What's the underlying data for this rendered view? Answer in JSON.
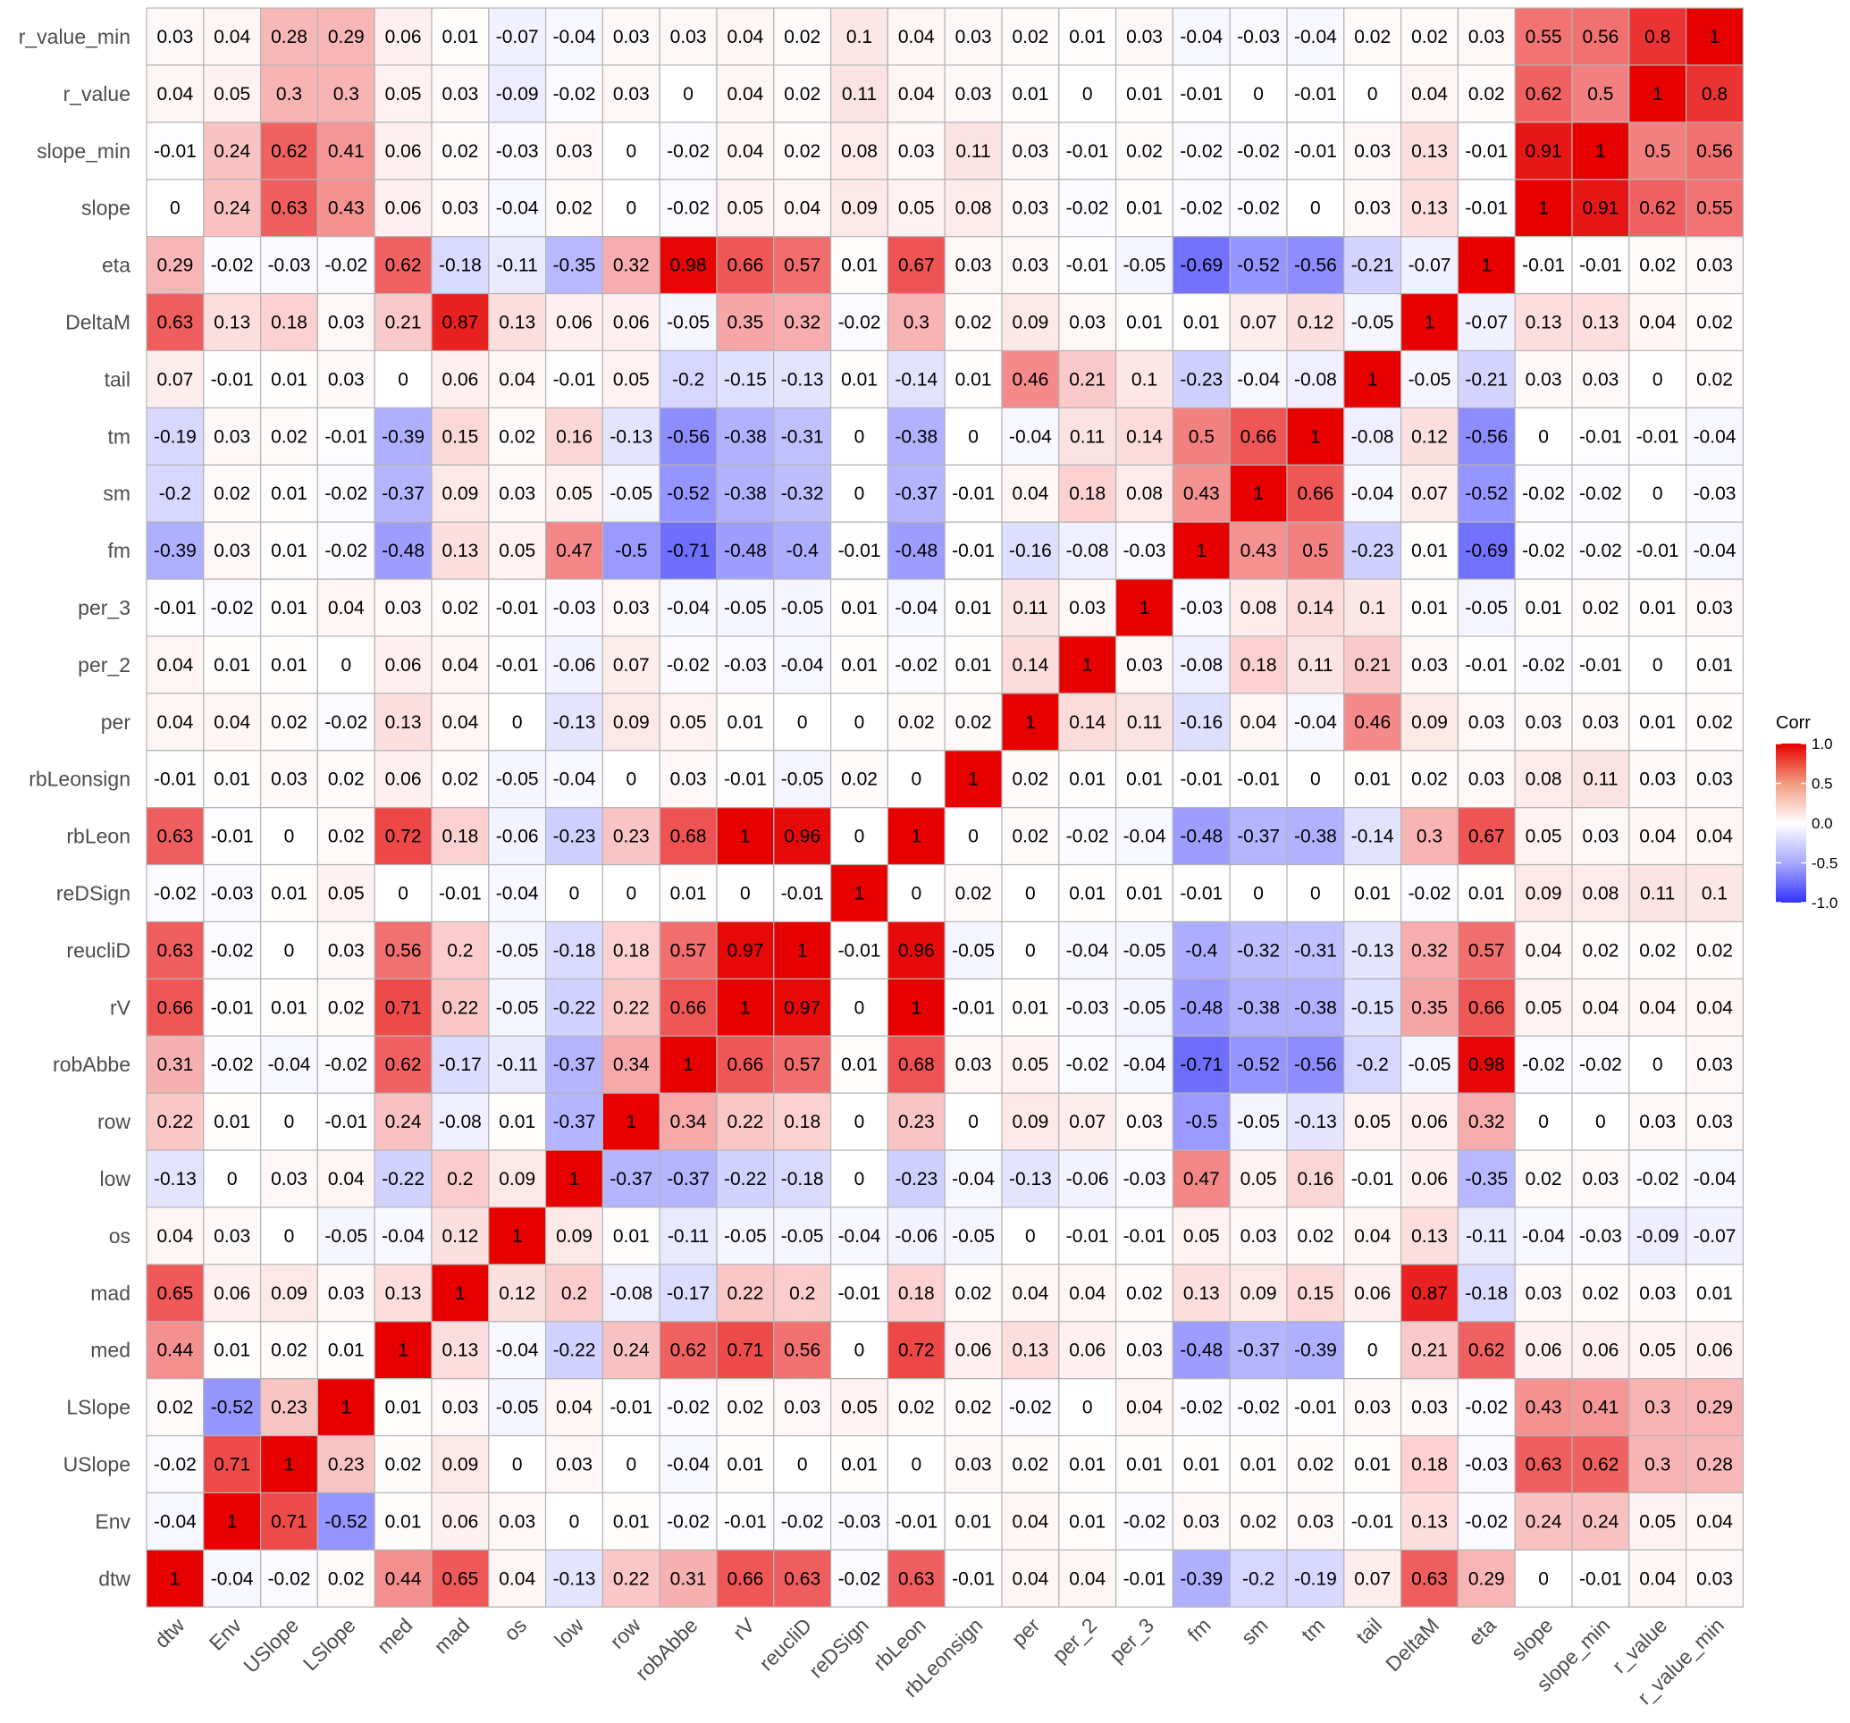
{
  "chart_data": {
    "type": "heatmap",
    "variables": [
      "dtw",
      "Env",
      "USlope",
      "LSlope",
      "med",
      "mad",
      "os",
      "low",
      "row",
      "robAbbe",
      "rV",
      "reucliD",
      "reDSign",
      "rbLeon",
      "rbLeonsign",
      "per",
      "per_2",
      "per_3",
      "fm",
      "sm",
      "tm",
      "tail",
      "DeltaM",
      "eta",
      "slope",
      "slope_min",
      "r_value",
      "r_value_min"
    ],
    "matrix": [
      [
        1,
        -0.04,
        -0.02,
        0.02,
        0.44,
        0.65,
        0.04,
        -0.13,
        0.22,
        0.31,
        0.66,
        0.63,
        -0.02,
        0.63,
        -0.01,
        0.04,
        0.04,
        -0.01,
        -0.39,
        -0.2,
        -0.19,
        0.07,
        0.63,
        0.29,
        0,
        -0.01,
        0.04,
        0.03
      ],
      [
        -0.04,
        1,
        0.71,
        -0.52,
        0.01,
        0.06,
        0.03,
        0,
        0.01,
        -0.02,
        -0.01,
        -0.02,
        -0.03,
        -0.01,
        0.01,
        0.04,
        0.01,
        -0.02,
        0.03,
        0.02,
        0.03,
        -0.01,
        0.13,
        -0.02,
        0.24,
        0.24,
        0.05,
        0.04
      ],
      [
        -0.02,
        0.71,
        1,
        0.23,
        0.02,
        0.09,
        0,
        0.03,
        0,
        -0.04,
        0.01,
        0,
        0.01,
        0,
        0.03,
        0.02,
        0.01,
        0.01,
        0.01,
        0.01,
        0.02,
        0.01,
        0.18,
        -0.03,
        0.63,
        0.62,
        0.3,
        0.28
      ],
      [
        0.02,
        -0.52,
        0.23,
        1,
        0.01,
        0.03,
        -0.05,
        0.04,
        -0.01,
        -0.02,
        0.02,
        0.03,
        0.05,
        0.02,
        0.02,
        -0.02,
        0,
        0.04,
        -0.02,
        -0.02,
        -0.01,
        0.03,
        0.03,
        -0.02,
        0.43,
        0.41,
        0.3,
        0.29
      ],
      [
        0.44,
        0.01,
        0.02,
        0.01,
        1,
        0.13,
        -0.04,
        -0.22,
        0.24,
        0.62,
        0.71,
        0.56,
        0,
        0.72,
        0.06,
        0.13,
        0.06,
        0.03,
        -0.48,
        -0.37,
        -0.39,
        0,
        0.21,
        0.62,
        0.06,
        0.06,
        0.05,
        0.06
      ],
      [
        0.65,
        0.06,
        0.09,
        0.03,
        0.13,
        1,
        0.12,
        0.2,
        -0.08,
        -0.17,
        0.22,
        0.2,
        -0.01,
        0.18,
        0.02,
        0.04,
        0.04,
        0.02,
        0.13,
        0.09,
        0.15,
        0.06,
        0.87,
        -0.18,
        0.03,
        0.02,
        0.03,
        0.01
      ],
      [
        0.04,
        0.03,
        0,
        -0.05,
        -0.04,
        0.12,
        1,
        0.09,
        0.01,
        -0.11,
        -0.05,
        -0.05,
        -0.04,
        -0.06,
        -0.05,
        0,
        -0.01,
        -0.01,
        0.05,
        0.03,
        0.02,
        0.04,
        0.13,
        -0.11,
        -0.04,
        -0.03,
        -0.09,
        -0.07
      ],
      [
        -0.13,
        0,
        0.03,
        0.04,
        -0.22,
        0.2,
        0.09,
        1,
        -0.37,
        -0.37,
        -0.22,
        -0.18,
        0,
        -0.23,
        -0.04,
        -0.13,
        -0.06,
        -0.03,
        0.47,
        0.05,
        0.16,
        -0.01,
        0.06,
        -0.35,
        0.02,
        0.03,
        -0.02,
        -0.04
      ],
      [
        0.22,
        0.01,
        0,
        -0.01,
        0.24,
        -0.08,
        0.01,
        -0.37,
        1,
        0.34,
        0.22,
        0.18,
        0,
        0.23,
        0,
        0.09,
        0.07,
        0.03,
        -0.5,
        -0.05,
        -0.13,
        0.05,
        0.06,
        0.32,
        0,
        0,
        0.03,
        0.03
      ],
      [
        0.31,
        -0.02,
        -0.04,
        -0.02,
        0.62,
        -0.17,
        -0.11,
        -0.37,
        0.34,
        1,
        0.66,
        0.57,
        0.01,
        0.68,
        0.03,
        0.05,
        -0.02,
        -0.04,
        -0.71,
        -0.52,
        -0.56,
        -0.2,
        -0.05,
        0.98,
        -0.02,
        -0.02,
        0,
        0.03
      ],
      [
        0.66,
        -0.01,
        0.01,
        0.02,
        0.71,
        0.22,
        -0.05,
        -0.22,
        0.22,
        0.66,
        1,
        0.97,
        0,
        1,
        -0.01,
        0.01,
        -0.03,
        -0.05,
        -0.48,
        -0.38,
        -0.38,
        -0.15,
        0.35,
        0.66,
        0.05,
        0.04,
        0.04,
        0.04
      ],
      [
        0.63,
        -0.02,
        0,
        0.03,
        0.56,
        0.2,
        -0.05,
        -0.18,
        0.18,
        0.57,
        0.97,
        1,
        -0.01,
        0.96,
        -0.05,
        0,
        -0.04,
        -0.05,
        -0.4,
        -0.32,
        -0.31,
        -0.13,
        0.32,
        0.57,
        0.04,
        0.02,
        0.02,
        0.02
      ],
      [
        -0.02,
        -0.03,
        0.01,
        0.05,
        0,
        -0.01,
        -0.04,
        0,
        0,
        0.01,
        0,
        -0.01,
        1,
        0,
        0.02,
        0,
        0.01,
        0.01,
        -0.01,
        0,
        0,
        0.01,
        -0.02,
        0.01,
        0.09,
        0.08,
        0.11,
        0.1
      ],
      [
        0.63,
        -0.01,
        0,
        0.02,
        0.72,
        0.18,
        -0.06,
        -0.23,
        0.23,
        0.68,
        1,
        0.96,
        0,
        1,
        0,
        0.02,
        -0.02,
        -0.04,
        -0.48,
        -0.37,
        -0.38,
        -0.14,
        0.3,
        0.67,
        0.05,
        0.03,
        0.04,
        0.04
      ],
      [
        -0.01,
        0.01,
        0.03,
        0.02,
        0.06,
        0.02,
        -0.05,
        -0.04,
        0,
        0.03,
        -0.01,
        -0.05,
        0.02,
        0,
        1,
        0.02,
        0.01,
        0.01,
        -0.01,
        -0.01,
        0,
        0.01,
        0.02,
        0.03,
        0.08,
        0.11,
        0.03,
        0.03
      ],
      [
        0.04,
        0.04,
        0.02,
        -0.02,
        0.13,
        0.04,
        0,
        -0.13,
        0.09,
        0.05,
        0.01,
        0,
        0,
        0.02,
        0.02,
        1,
        0.14,
        0.11,
        -0.16,
        0.04,
        -0.04,
        0.46,
        0.09,
        0.03,
        0.03,
        0.03,
        0.01,
        0.02
      ],
      [
        0.04,
        0.01,
        0.01,
        0,
        0.06,
        0.04,
        -0.01,
        -0.06,
        0.07,
        -0.02,
        -0.03,
        -0.04,
        0.01,
        -0.02,
        0.01,
        0.14,
        1,
        0.03,
        -0.08,
        0.18,
        0.11,
        0.21,
        0.03,
        -0.01,
        -0.02,
        -0.01,
        0,
        0.01
      ],
      [
        -0.01,
        -0.02,
        0.01,
        0.04,
        0.03,
        0.02,
        -0.01,
        -0.03,
        0.03,
        -0.04,
        -0.05,
        -0.05,
        0.01,
        -0.04,
        0.01,
        0.11,
        0.03,
        1,
        -0.03,
        0.08,
        0.14,
        0.1,
        0.01,
        -0.05,
        0.01,
        0.02,
        0.01,
        0.03
      ],
      [
        -0.39,
        0.03,
        0.01,
        -0.02,
        -0.48,
        0.13,
        0.05,
        0.47,
        -0.5,
        -0.71,
        -0.48,
        -0.4,
        -0.01,
        -0.48,
        -0.01,
        -0.16,
        -0.08,
        -0.03,
        1,
        0.43,
        0.5,
        -0.23,
        0.01,
        -0.69,
        -0.02,
        -0.02,
        -0.01,
        -0.04
      ],
      [
        -0.2,
        0.02,
        0.01,
        -0.02,
        -0.37,
        0.09,
        0.03,
        0.05,
        -0.05,
        -0.52,
        -0.38,
        -0.32,
        0,
        -0.37,
        -0.01,
        0.04,
        0.18,
        0.08,
        0.43,
        1,
        0.66,
        -0.04,
        0.07,
        -0.52,
        -0.02,
        -0.02,
        0,
        -0.03
      ],
      [
        -0.19,
        0.03,
        0.02,
        -0.01,
        -0.39,
        0.15,
        0.02,
        0.16,
        -0.13,
        -0.56,
        -0.38,
        -0.31,
        0,
        -0.38,
        0,
        -0.04,
        0.11,
        0.14,
        0.5,
        0.66,
        1,
        -0.08,
        0.12,
        -0.56,
        0,
        -0.01,
        -0.01,
        -0.04
      ],
      [
        0.07,
        -0.01,
        0.01,
        0.03,
        0,
        0.06,
        0.04,
        -0.01,
        0.05,
        -0.2,
        -0.15,
        -0.13,
        0.01,
        -0.14,
        0.01,
        0.46,
        0.21,
        0.1,
        -0.23,
        -0.04,
        -0.08,
        1,
        -0.05,
        -0.21,
        0.03,
        0.03,
        0,
        0.02
      ],
      [
        0.63,
        0.13,
        0.18,
        0.03,
        0.21,
        0.87,
        0.13,
        0.06,
        0.06,
        -0.05,
        0.35,
        0.32,
        -0.02,
        0.3,
        0.02,
        0.09,
        0.03,
        0.01,
        0.01,
        0.07,
        0.12,
        -0.05,
        1,
        -0.07,
        0.13,
        0.13,
        0.04,
        0.02
      ],
      [
        0.29,
        -0.02,
        -0.03,
        -0.02,
        0.62,
        -0.18,
        -0.11,
        -0.35,
        0.32,
        0.98,
        0.66,
        0.57,
        0.01,
        0.67,
        0.03,
        0.03,
        -0.01,
        -0.05,
        -0.69,
        -0.52,
        -0.56,
        -0.21,
        -0.07,
        1,
        -0.01,
        -0.01,
        0.02,
        0.03
      ],
      [
        0,
        0.24,
        0.63,
        0.43,
        0.06,
        0.03,
        -0.04,
        0.02,
        0,
        -0.02,
        0.05,
        0.04,
        0.09,
        0.05,
        0.08,
        0.03,
        -0.02,
        0.01,
        -0.02,
        -0.02,
        0,
        0.03,
        0.13,
        -0.01,
        1,
        0.91,
        0.62,
        0.55
      ],
      [
        -0.01,
        0.24,
        0.62,
        0.41,
        0.06,
        0.02,
        -0.03,
        0.03,
        0,
        -0.02,
        0.04,
        0.02,
        0.08,
        0.03,
        0.11,
        0.03,
        -0.01,
        0.02,
        -0.02,
        -0.02,
        -0.01,
        0.03,
        0.13,
        -0.01,
        0.91,
        1,
        0.5,
        0.56
      ],
      [
        0.04,
        0.05,
        0.3,
        0.3,
        0.05,
        0.03,
        -0.09,
        -0.02,
        0.03,
        0,
        0.04,
        0.02,
        0.11,
        0.04,
        0.03,
        0.01,
        0,
        0.01,
        -0.01,
        0,
        -0.01,
        0,
        0.04,
        0.02,
        0.62,
        0.5,
        1,
        0.8
      ],
      [
        0.03,
        0.04,
        0.28,
        0.29,
        0.06,
        0.01,
        -0.07,
        -0.04,
        0.03,
        0.03,
        0.04,
        0.02,
        0.1,
        0.04,
        0.03,
        0.02,
        0.01,
        0.03,
        -0.04,
        -0.03,
        -0.04,
        0.02,
        0.02,
        0.03,
        0.55,
        0.56,
        0.8,
        1
      ]
    ],
    "legend": {
      "title": "Corr",
      "ticks": [
        "1.0",
        "0.5",
        "0.0",
        "-0.5",
        "-1.0"
      ],
      "tick_values": [
        1,
        0.5,
        0,
        -0.5,
        -1
      ],
      "placement": "right"
    },
    "color_scale": {
      "low": "#3333ff",
      "mid": "#ffffff",
      "high": "#e60000",
      "limits": [
        -1,
        1
      ]
    },
    "x_axis": {
      "order": "left-to-right",
      "label_rotation": "45"
    },
    "y_axis": {
      "order": "bottom-to-top"
    },
    "grid_color": "#b4b4b4"
  }
}
